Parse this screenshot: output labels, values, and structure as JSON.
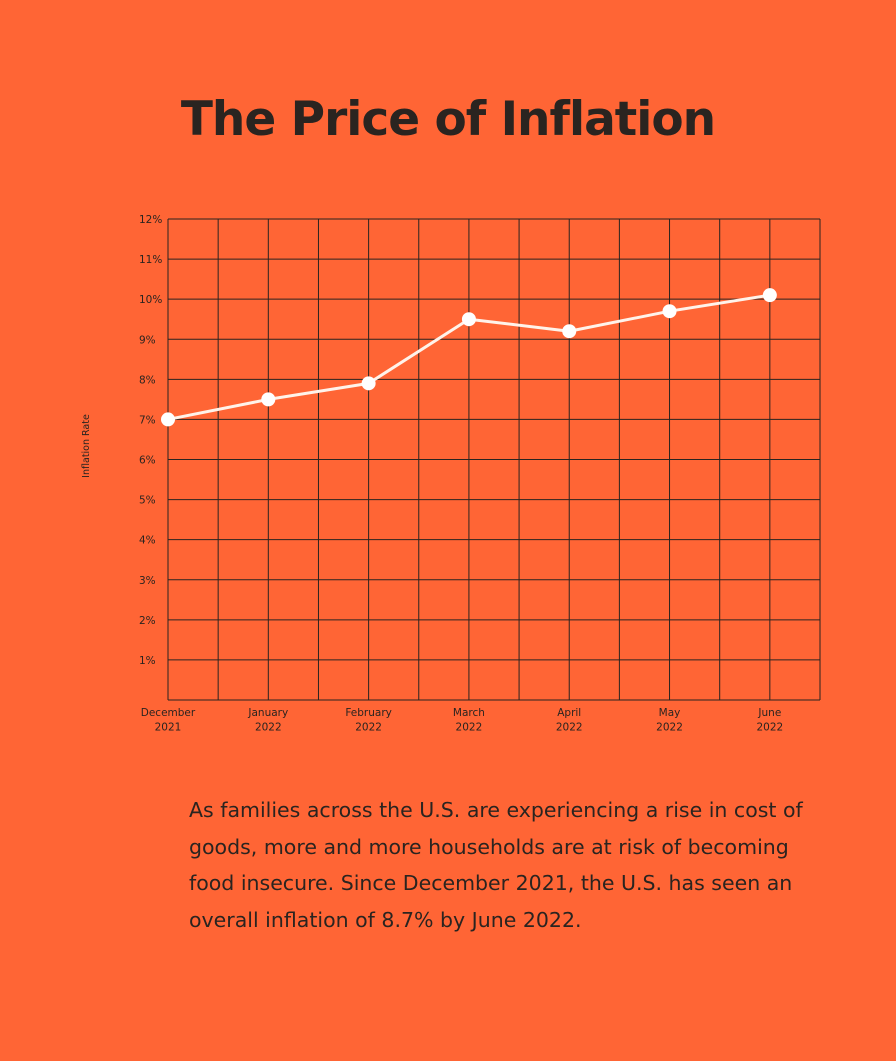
{
  "colors": {
    "background": "#FF6535",
    "ink": "#2A2420",
    "line": "#FFF3EA",
    "marker": "#FFFFFF"
  },
  "title": "The Price of Inflation",
  "body_text": "As families across the U.S. are experiencing a rise in cost of goods, more and more households are at risk of becoming food insecure. Since December 2021, the U.S. has seen an overall inflation of 8.7% by June 2022.",
  "chart_data": {
    "type": "line",
    "title": "The Price of Inflation",
    "xlabel": "",
    "ylabel": "Inflation Rate",
    "ylim": [
      0,
      12
    ],
    "grid": true,
    "legend": "none",
    "y_ticks": [
      "1%",
      "2%",
      "3%",
      "4%",
      "5%",
      "6%",
      "7%",
      "8%",
      "9%",
      "10%",
      "11%",
      "12%"
    ],
    "categories": [
      [
        "December",
        "2021"
      ],
      [
        "January",
        "2022"
      ],
      [
        "February",
        "2022"
      ],
      [
        "March",
        "2022"
      ],
      [
        "April",
        "2022"
      ],
      [
        "May",
        "2022"
      ],
      [
        "June",
        "2022"
      ]
    ],
    "series": [
      {
        "values": [
          7.0,
          7.5,
          7.9,
          9.5,
          9.2,
          9.7,
          10.1
        ]
      }
    ]
  }
}
